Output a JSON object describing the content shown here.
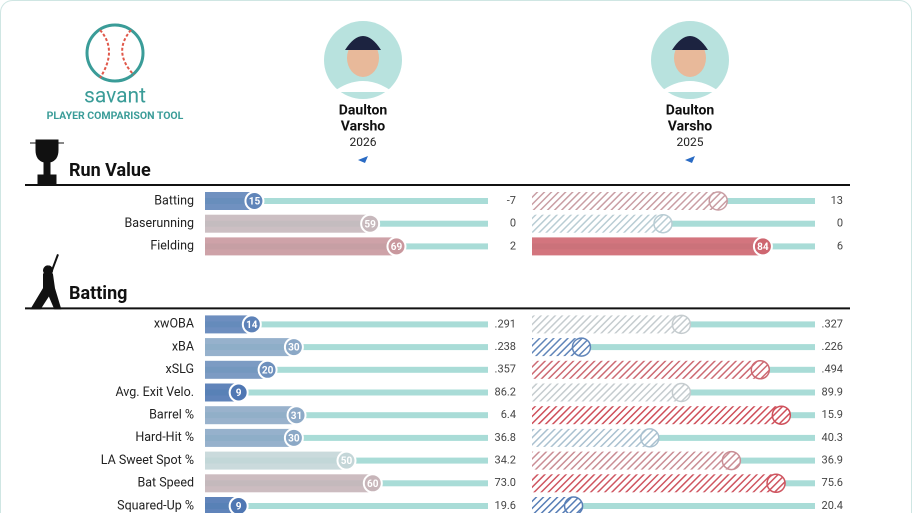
{
  "header": {
    "logo_text": "savant",
    "subtitle": "PLAYER COMPARISON TOOL"
  },
  "players": [
    {
      "name_lines": [
        "Daulton",
        "Varsho"
      ],
      "season": "2026"
    },
    {
      "name_lines": [
        "Daulton",
        "Varsho"
      ],
      "season": "2025"
    }
  ],
  "sections": [
    {
      "title": "Run Value",
      "icon": "trophy",
      "rows": [
        {
          "label": "Batting",
          "left": {
            "percentile": 15,
            "value": "-7"
          },
          "right": {
            "percentile": 67,
            "hatched": true,
            "value": "13"
          }
        },
        {
          "label": "Baserunning",
          "left": {
            "percentile": 59,
            "value": "0"
          },
          "right": {
            "percentile": 46,
            "hatched": true,
            "value": "0"
          }
        },
        {
          "label": "Fielding",
          "left": {
            "percentile": 69,
            "value": "2"
          },
          "right": {
            "percentile": 84,
            "value": "6"
          }
        }
      ]
    },
    {
      "title": "Batting",
      "icon": "batter",
      "rows": [
        {
          "label": "xwOBA",
          "left": {
            "percentile": 14,
            "value": ".291"
          },
          "right": {
            "percentile": 53,
            "hatched": true,
            "value": ".327"
          }
        },
        {
          "label": "xBA",
          "left": {
            "percentile": 30,
            "value": ".238"
          },
          "right": {
            "percentile": 15,
            "hatched": true,
            "value": ".226"
          }
        },
        {
          "label": "xSLG",
          "left": {
            "percentile": 20,
            "value": ".357"
          },
          "right": {
            "percentile": 83,
            "hatched": true,
            "value": ".494"
          }
        },
        {
          "label": "Avg. Exit Velo.",
          "left": {
            "percentile": 9,
            "value": "86.2"
          },
          "right": {
            "percentile": 53,
            "hatched": true,
            "value": "89.9"
          }
        },
        {
          "label": "Barrel %",
          "left": {
            "percentile": 31,
            "value": "6.4"
          },
          "right": {
            "percentile": 91,
            "hatched": true,
            "value": "15.9"
          }
        },
        {
          "label": "Hard-Hit %",
          "left": {
            "percentile": 30,
            "value": "36.8"
          },
          "right": {
            "percentile": 41,
            "hatched": true,
            "value": "40.3"
          }
        },
        {
          "label": "LA Sweet Spot %",
          "left": {
            "percentile": 50,
            "value": "34.2"
          },
          "right": {
            "percentile": 72,
            "hatched": true,
            "value": "36.9"
          }
        },
        {
          "label": "Bat Speed",
          "left": {
            "percentile": 60,
            "value": "73.0"
          },
          "right": {
            "percentile": 89,
            "hatched": true,
            "value": "75.6"
          }
        },
        {
          "label": "Squared-Up %",
          "left": {
            "percentile": 9,
            "value": "19.6"
          },
          "right": {
            "percentile": 12,
            "hatched": true,
            "value": "20.4"
          }
        }
      ]
    }
  ]
}
